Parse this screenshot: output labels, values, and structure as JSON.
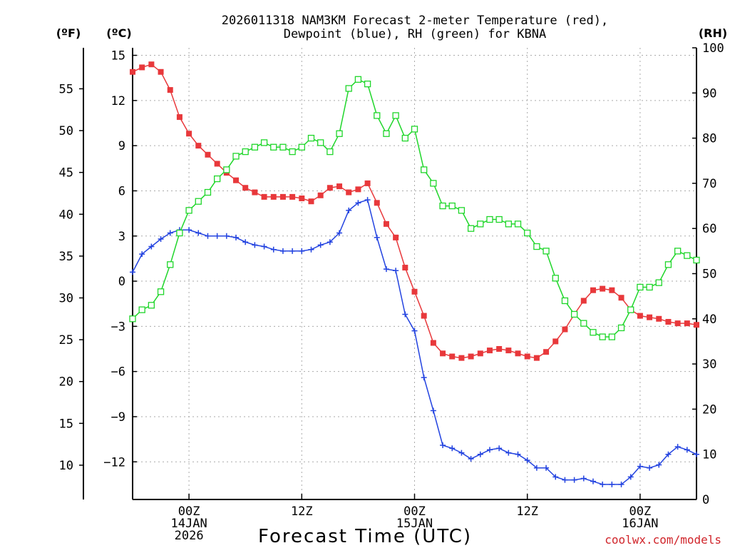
{
  "chart_data": {
    "type": "line",
    "title_line1": "2026011318 NAM3KM Forecast 2-meter Temperature (red),",
    "title_line2": "Dewpoint (blue), RH (green) for KBNA",
    "xlabel": "Forecast Time (UTC)",
    "unit_f": "(ºF)",
    "unit_c": "(ºC)",
    "unit_rh": "(RH)",
    "watermark": "coolwx.com/models",
    "x_range_hours": [
      0,
      60
    ],
    "c_range": [
      -14.5,
      15.5
    ],
    "c_ticks": [
      "15",
      "12",
      "9",
      "6",
      "3",
      "0",
      "−3",
      "−6",
      "−9",
      "−12"
    ],
    "c_tick_values": [
      15,
      12,
      9,
      6,
      3,
      0,
      -3,
      -6,
      -9,
      -12
    ],
    "f_ticks": [
      "55",
      "50",
      "45",
      "40",
      "35",
      "30",
      "25",
      "20",
      "15",
      "10"
    ],
    "f_tick_values": [
      55,
      50,
      45,
      40,
      35,
      30,
      25,
      20,
      15,
      10
    ],
    "rh_range": [
      0,
      100
    ],
    "rh_ticks": [
      "100",
      "90",
      "80",
      "70",
      "60",
      "50",
      "40",
      "30",
      "20",
      "10",
      "0"
    ],
    "rh_tick_values": [
      100,
      90,
      80,
      70,
      60,
      50,
      40,
      30,
      20,
      10,
      0
    ],
    "x_ticks": [
      {
        "hour": 6,
        "line1": "00Z",
        "line2": "14JAN",
        "line3": "2026"
      },
      {
        "hour": 18,
        "line1": "12Z",
        "line2": "",
        "line3": ""
      },
      {
        "hour": 30,
        "line1": "00Z",
        "line2": "15JAN",
        "line3": ""
      },
      {
        "hour": 42,
        "line1": "12Z",
        "line2": "",
        "line3": ""
      },
      {
        "hour": 54,
        "line1": "00Z",
        "line2": "16JAN",
        "line3": ""
      }
    ],
    "hours": [
      0,
      1,
      2,
      3,
      4,
      5,
      6,
      7,
      8,
      9,
      10,
      11,
      12,
      13,
      14,
      15,
      16,
      17,
      18,
      19,
      20,
      21,
      22,
      23,
      24,
      25,
      26,
      27,
      28,
      29,
      30,
      31,
      32,
      33,
      34,
      35,
      36,
      37,
      38,
      39,
      40,
      41,
      42,
      43,
      44,
      45,
      46,
      47,
      48,
      49,
      50,
      51,
      52,
      53,
      54,
      55,
      56,
      57,
      58,
      59,
      60
    ],
    "series": [
      {
        "name": "Temperature",
        "unit": "C",
        "color": "#e8383b",
        "marker": "filled-square",
        "values": [
          13.9,
          14.2,
          14.4,
          13.9,
          12.7,
          10.9,
          9.8,
          9.0,
          8.4,
          7.8,
          7.2,
          6.7,
          6.2,
          5.9,
          5.6,
          5.6,
          5.6,
          5.6,
          5.5,
          5.3,
          5.7,
          6.2,
          6.3,
          5.9,
          6.1,
          6.5,
          5.2,
          3.8,
          2.9,
          0.9,
          -0.7,
          -2.3,
          -4.1,
          -4.8,
          -5.0,
          -5.1,
          -5.0,
          -4.8,
          -4.6,
          -4.5,
          -4.6,
          -4.8,
          -5.0,
          -5.1,
          -4.7,
          -4.0,
          -3.2,
          -2.2,
          -1.3,
          -0.6,
          -0.5,
          -0.6,
          -1.1,
          -1.9,
          -2.3,
          -2.4,
          -2.5,
          -2.7,
          -2.8,
          -2.8,
          -2.9
        ]
      },
      {
        "name": "Dewpoint",
        "unit": "C",
        "color": "#2343e0",
        "marker": "plus",
        "values": [
          0.6,
          1.8,
          2.3,
          2.8,
          3.2,
          3.4,
          3.4,
          3.2,
          3.0,
          3.0,
          3.0,
          2.9,
          2.6,
          2.4,
          2.3,
          2.1,
          2.0,
          2.0,
          2.0,
          2.1,
          2.4,
          2.6,
          3.2,
          4.7,
          5.2,
          5.4,
          2.9,
          0.8,
          0.7,
          -2.2,
          -3.3,
          -6.4,
          -8.6,
          -10.9,
          -11.1,
          -11.4,
          -11.8,
          -11.5,
          -11.2,
          -11.1,
          -11.4,
          -11.5,
          -11.9,
          -12.4,
          -12.4,
          -13.0,
          -13.2,
          -13.2,
          -13.1,
          -13.3,
          -13.5,
          -13.5,
          -13.5,
          -13.0,
          -12.3,
          -12.4,
          -12.2,
          -11.5,
          -11.0,
          -11.2,
          -11.5
        ]
      },
      {
        "name": "Relative Humidity",
        "unit": "%",
        "color": "#1fd62a",
        "marker": "open-square",
        "values": [
          40,
          42,
          43,
          46,
          52,
          59,
          64,
          66,
          68,
          71,
          73,
          76,
          77,
          78,
          79,
          78,
          78,
          77,
          78,
          80,
          79,
          77,
          81,
          91,
          93,
          92,
          85,
          81,
          85,
          80,
          82,
          73,
          70,
          65,
          65,
          64,
          60,
          61,
          62,
          62,
          61,
          61,
          59,
          56,
          55,
          49,
          44,
          41,
          39,
          37,
          36,
          36,
          38,
          42,
          47,
          47,
          48,
          52,
          55,
          54,
          53
        ]
      }
    ]
  }
}
